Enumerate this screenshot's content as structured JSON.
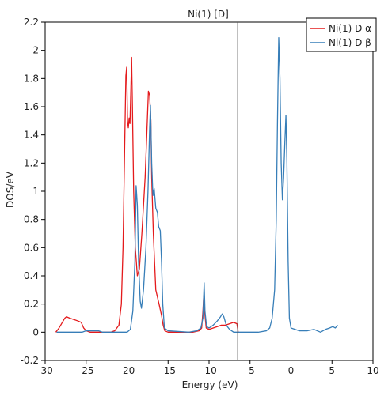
{
  "chart_data": {
    "type": "line",
    "title": "Ni(1) [D]",
    "xlabel": "Energy (eV)",
    "ylabel": "DOS/eV",
    "xlim": [
      -30,
      10
    ],
    "ylim": [
      -0.2,
      2.2
    ],
    "xticks": [
      -30,
      -25,
      -20,
      -15,
      -10,
      -5,
      0,
      5,
      10
    ],
    "xtick_labels": [
      "-30",
      "-25",
      "-20",
      "-15",
      "-10",
      "-5",
      "0",
      "5",
      "10"
    ],
    "yticks": [
      -0.2,
      0,
      0.2,
      0.4,
      0.6,
      0.8,
      1,
      1.2,
      1.4,
      1.6,
      1.8,
      2,
      2.2
    ],
    "ytick_labels": [
      "-0.2",
      "0",
      "0.2",
      "0.4",
      "0.6",
      "0.8",
      "1",
      "1.2",
      "1.4",
      "1.6",
      "1.8",
      "2",
      "2.2"
    ],
    "grid": false,
    "legend_position": "top-right",
    "vline": {
      "x": -6.5,
      "color": "#555555"
    },
    "series": [
      {
        "name": "Ni(1) D α",
        "color": "#e41a1c",
        "points": [
          [
            -28.7,
            0.0
          ],
          [
            -28.3,
            0.03
          ],
          [
            -27.9,
            0.07
          ],
          [
            -27.6,
            0.1
          ],
          [
            -27.4,
            0.11
          ],
          [
            -27.0,
            0.1
          ],
          [
            -26.5,
            0.09
          ],
          [
            -26.0,
            0.08
          ],
          [
            -25.6,
            0.07
          ],
          [
            -25.3,
            0.03
          ],
          [
            -25.0,
            0.01
          ],
          [
            -24.5,
            0.0
          ],
          [
            -22.0,
            0.0
          ],
          [
            -21.5,
            0.01
          ],
          [
            -21.0,
            0.05
          ],
          [
            -20.7,
            0.2
          ],
          [
            -20.5,
            0.6
          ],
          [
            -20.3,
            1.3
          ],
          [
            -20.15,
            1.82
          ],
          [
            -20.05,
            1.88
          ],
          [
            -19.95,
            1.5
          ],
          [
            -19.85,
            1.45
          ],
          [
            -19.75,
            1.52
          ],
          [
            -19.65,
            1.48
          ],
          [
            -19.55,
            1.7
          ],
          [
            -19.45,
            1.95
          ],
          [
            -19.35,
            1.6
          ],
          [
            -19.2,
            1.0
          ],
          [
            -19.0,
            0.6
          ],
          [
            -18.75,
            0.4
          ],
          [
            -18.5,
            0.45
          ],
          [
            -18.2,
            0.7
          ],
          [
            -17.8,
            1.1
          ],
          [
            -17.6,
            1.4
          ],
          [
            -17.4,
            1.71
          ],
          [
            -17.25,
            1.68
          ],
          [
            -17.1,
            1.5
          ],
          [
            -17.0,
            1.1
          ],
          [
            -16.8,
            0.7
          ],
          [
            -16.5,
            0.3
          ],
          [
            -16.1,
            0.2
          ],
          [
            -15.8,
            0.12
          ],
          [
            -15.6,
            0.05
          ],
          [
            -15.4,
            0.01
          ],
          [
            -15.0,
            0.0
          ],
          [
            -12.0,
            0.0
          ],
          [
            -11.2,
            0.01
          ],
          [
            -10.9,
            0.03
          ],
          [
            -10.75,
            0.15
          ],
          [
            -10.65,
            0.26
          ],
          [
            -10.5,
            0.12
          ],
          [
            -10.35,
            0.03
          ],
          [
            -10.0,
            0.02
          ],
          [
            -9.5,
            0.03
          ],
          [
            -9.0,
            0.04
          ],
          [
            -8.5,
            0.05
          ],
          [
            -8.0,
            0.05
          ],
          [
            -7.5,
            0.06
          ],
          [
            -7.0,
            0.07
          ],
          [
            -6.6,
            0.06
          ],
          [
            -6.45,
            0.0
          ]
        ]
      },
      {
        "name": "Ni(1) D β",
        "color": "#377eb8",
        "points": [
          [
            -28.6,
            0.0
          ],
          [
            -25.5,
            0.0
          ],
          [
            -25.0,
            0.01
          ],
          [
            -24.0,
            0.01
          ],
          [
            -23.5,
            0.01
          ],
          [
            -23.0,
            0.0
          ],
          [
            -21.0,
            0.0
          ],
          [
            -20.0,
            0.0
          ],
          [
            -19.6,
            0.02
          ],
          [
            -19.3,
            0.15
          ],
          [
            -19.05,
            0.5
          ],
          [
            -18.9,
            1.04
          ],
          [
            -18.75,
            0.9
          ],
          [
            -18.6,
            0.5
          ],
          [
            -18.4,
            0.22
          ],
          [
            -18.25,
            0.17
          ],
          [
            -18.0,
            0.3
          ],
          [
            -17.7,
            0.6
          ],
          [
            -17.45,
            1.0
          ],
          [
            -17.25,
            1.45
          ],
          [
            -17.15,
            1.61
          ],
          [
            -17.0,
            1.2
          ],
          [
            -16.85,
            0.97
          ],
          [
            -16.7,
            1.02
          ],
          [
            -16.5,
            0.88
          ],
          [
            -16.3,
            0.85
          ],
          [
            -16.15,
            0.75
          ],
          [
            -15.95,
            0.72
          ],
          [
            -15.8,
            0.5
          ],
          [
            -15.65,
            0.2
          ],
          [
            -15.45,
            0.03
          ],
          [
            -15.0,
            0.01
          ],
          [
            -12.5,
            0.0
          ],
          [
            -11.5,
            0.01
          ],
          [
            -11.0,
            0.03
          ],
          [
            -10.75,
            0.1
          ],
          [
            -10.6,
            0.35
          ],
          [
            -10.5,
            0.15
          ],
          [
            -10.3,
            0.04
          ],
          [
            -10.0,
            0.03
          ],
          [
            -9.5,
            0.05
          ],
          [
            -9.0,
            0.08
          ],
          [
            -8.6,
            0.11
          ],
          [
            -8.4,
            0.13
          ],
          [
            -8.2,
            0.11
          ],
          [
            -7.9,
            0.05
          ],
          [
            -7.5,
            0.02
          ],
          [
            -7.0,
            0.0
          ],
          [
            -4.0,
            0.0
          ],
          [
            -3.0,
            0.01
          ],
          [
            -2.6,
            0.03
          ],
          [
            -2.3,
            0.1
          ],
          [
            -2.0,
            0.3
          ],
          [
            -1.8,
            0.8
          ],
          [
            -1.65,
            1.5
          ],
          [
            -1.5,
            2.09
          ],
          [
            -1.35,
            1.8
          ],
          [
            -1.2,
            1.2
          ],
          [
            -1.05,
            0.94
          ],
          [
            -0.9,
            1.1
          ],
          [
            -0.75,
            1.35
          ],
          [
            -0.62,
            1.54
          ],
          [
            -0.5,
            1.2
          ],
          [
            -0.35,
            0.5
          ],
          [
            -0.2,
            0.1
          ],
          [
            0.0,
            0.03
          ],
          [
            0.5,
            0.02
          ],
          [
            1.0,
            0.01
          ],
          [
            2.0,
            0.01
          ],
          [
            2.8,
            0.02
          ],
          [
            3.2,
            0.01
          ],
          [
            3.6,
            0.0
          ],
          [
            4.2,
            0.02
          ],
          [
            4.7,
            0.03
          ],
          [
            5.1,
            0.04
          ],
          [
            5.4,
            0.03
          ],
          [
            5.7,
            0.05
          ]
        ]
      }
    ]
  }
}
